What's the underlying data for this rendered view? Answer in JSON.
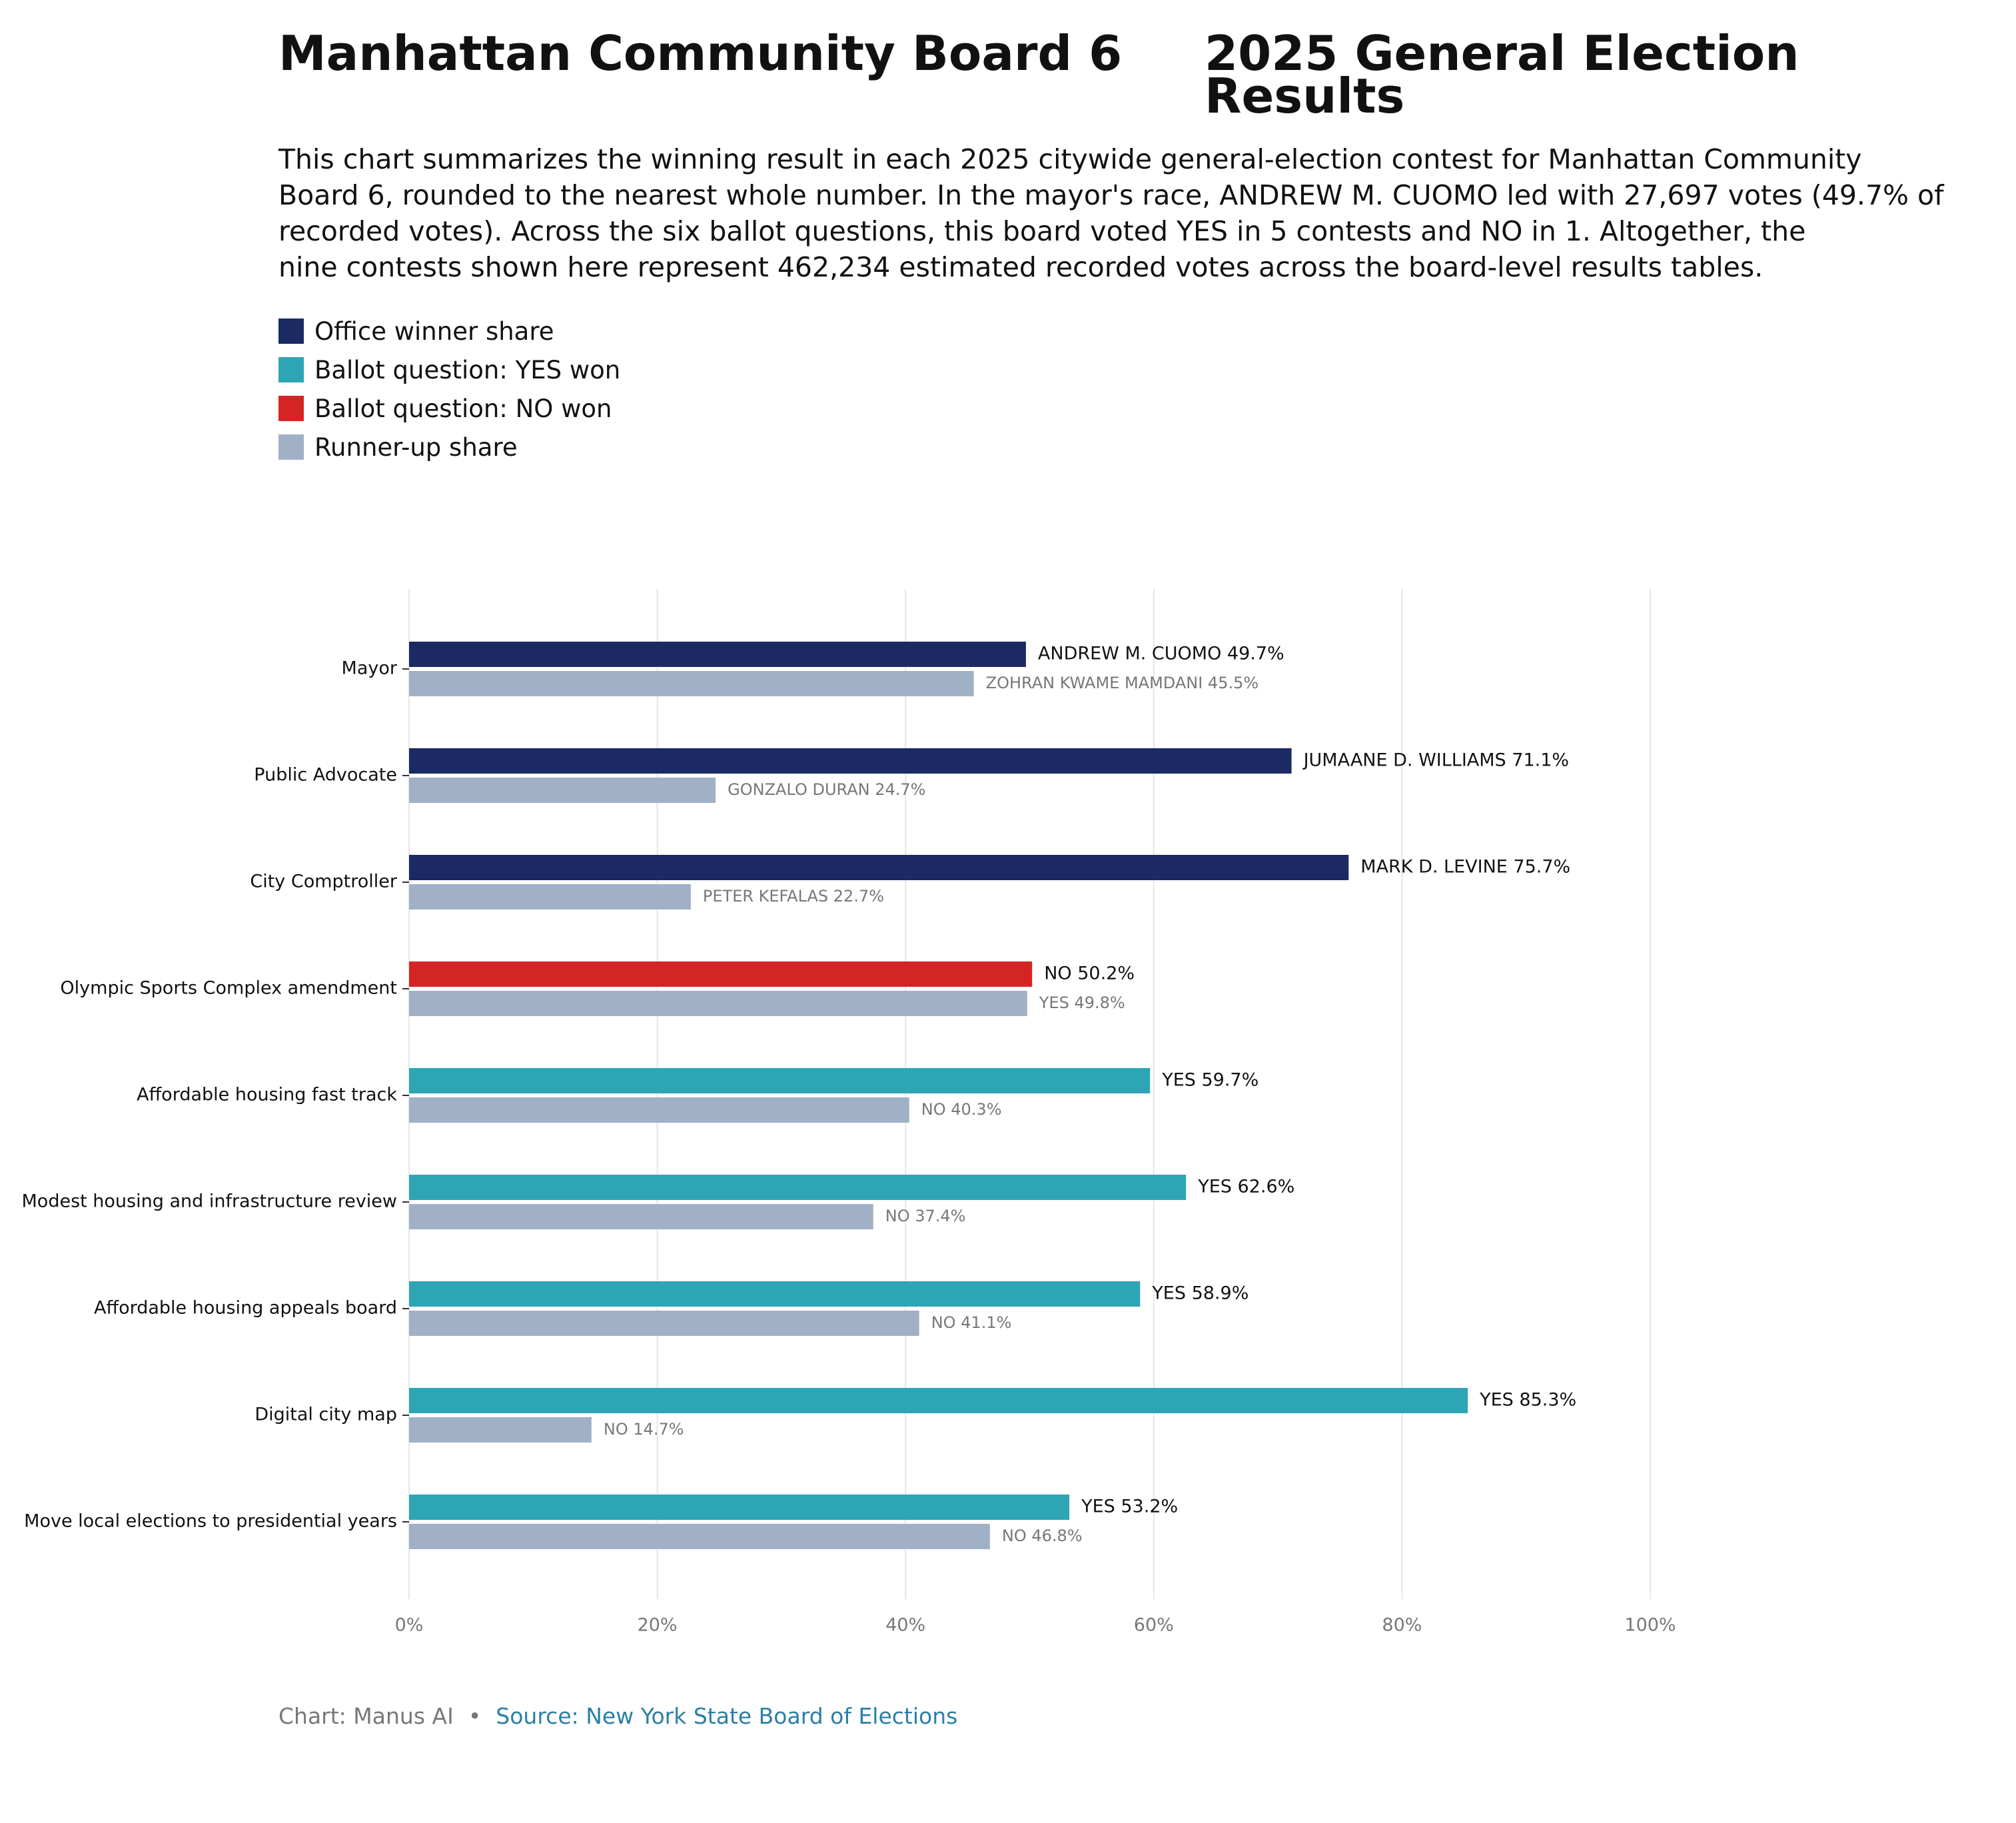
{
  "header": {
    "title_left": "Manhattan Community Board 6",
    "title_right": "2025 General Election Results",
    "subtitle": "This chart summarizes the winning result in each 2025 citywide general-election contest for Manhattan Community\nBoard 6, rounded to the nearest whole number. In the mayor's race, ANDREW M. CUOMO led with 27,697 votes (49.7% of\nrecorded votes). Across the six ballot questions, this board voted YES in 5 contests and NO in 1. Altogether, the\nnine contests shown here represent 462,234 estimated recorded votes across the board-level results tables."
  },
  "legend": {
    "items": [
      {
        "label": "Office winner share",
        "color": "#1b2a63"
      },
      {
        "label": "Ballot question: YES won",
        "color": "#2ea5b5"
      },
      {
        "label": "Ballot question: NO won",
        "color": "#d42525"
      },
      {
        "label": "Runner-up share",
        "color": "#a0b1c7"
      }
    ]
  },
  "footer": {
    "credit": "Chart: Manus AI",
    "separator": "•",
    "source": "Source: New York State Board of Elections"
  },
  "chart_data": {
    "type": "bar",
    "orientation": "horizontal",
    "xlim": [
      0,
      100
    ],
    "x_ticks": [
      "0%",
      "20%",
      "40%",
      "60%",
      "80%",
      "100%"
    ],
    "grid": true,
    "colors": {
      "office": "#1b2a63",
      "yes": "#2ea5b5",
      "no": "#d42525",
      "runner_up": "#a0b1c7"
    },
    "categories": [
      {
        "name": "Mayor",
        "kind": "office",
        "winner_label": "ANDREW M. CUOMO 49.7%",
        "winner_value": 49.7,
        "runner_label": "ZOHRAN KWAME MAMDANI 45.5%",
        "runner_value": 45.5
      },
      {
        "name": "Public Advocate",
        "kind": "office",
        "winner_label": "JUMAANE D. WILLIAMS 71.1%",
        "winner_value": 71.1,
        "runner_label": "GONZALO DURAN 24.7%",
        "runner_value": 24.7
      },
      {
        "name": "City Comptroller",
        "kind": "office",
        "winner_label": "MARK D. LEVINE 75.7%",
        "winner_value": 75.7,
        "runner_label": "PETER KEFALAS 22.7%",
        "runner_value": 22.7
      },
      {
        "name": "Olympic Sports Complex amendment",
        "kind": "no",
        "winner_label": "NO 50.2%",
        "winner_value": 50.2,
        "runner_label": "YES 49.8%",
        "runner_value": 49.8
      },
      {
        "name": "Affordable housing fast track",
        "kind": "yes",
        "winner_label": "YES 59.7%",
        "winner_value": 59.7,
        "runner_label": "NO 40.3%",
        "runner_value": 40.3
      },
      {
        "name": "Modest housing and infrastructure review",
        "kind": "yes",
        "winner_label": "YES 62.6%",
        "winner_value": 62.6,
        "runner_label": "NO 37.4%",
        "runner_value": 37.4
      },
      {
        "name": "Affordable housing appeals board",
        "kind": "yes",
        "winner_label": "YES 58.9%",
        "winner_value": 58.9,
        "runner_label": "NO 41.1%",
        "runner_value": 41.1
      },
      {
        "name": "Digital city map",
        "kind": "yes",
        "winner_label": "YES 85.3%",
        "winner_value": 85.3,
        "runner_label": "NO 14.7%",
        "runner_value": 14.7
      },
      {
        "name": "Move local elections to presidential years",
        "kind": "yes",
        "winner_label": "YES 53.2%",
        "winner_value": 53.2,
        "runner_label": "NO 46.8%",
        "runner_value": 46.8
      }
    ]
  }
}
